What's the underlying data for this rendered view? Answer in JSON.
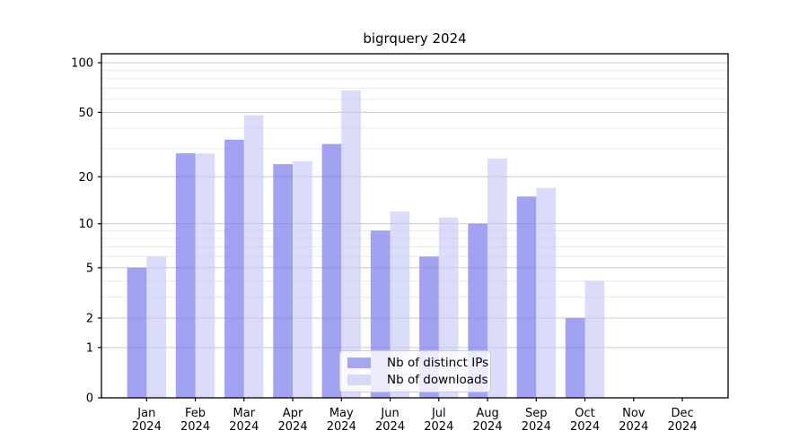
{
  "chart_data": {
    "type": "bar",
    "title": "bigrquery 2024",
    "categories": [
      "Jan",
      "Feb",
      "Mar",
      "Apr",
      "May",
      "Jun",
      "Jul",
      "Aug",
      "Sep",
      "Oct",
      "Nov",
      "Dec"
    ],
    "category_year": "2024",
    "series": [
      {
        "name": "Nb of distinct IPs",
        "values": [
          5,
          28,
          34,
          24,
          32,
          9,
          6,
          10,
          15,
          2,
          0,
          0
        ]
      },
      {
        "name": "Nb of downloads",
        "values": [
          6,
          28,
          48,
          25,
          68,
          12,
          11,
          26,
          17,
          4,
          0,
          0
        ]
      }
    ],
    "xlabel": "",
    "ylabel": "",
    "yscale": "log1p",
    "ylim": [
      0,
      113
    ],
    "yticks": [
      0,
      1,
      2,
      5,
      10,
      20,
      50,
      100
    ],
    "yticks_minor": [
      3,
      4,
      6,
      7,
      8,
      9,
      30,
      40,
      60,
      70,
      80,
      90
    ],
    "grid": "horizontal",
    "legend_position": "lower-center-inside",
    "colors": {
      "distinct_ips_fill": "rgba(131,131,238,0.75)",
      "downloads_fill": "rgba(200,200,248,0.65)",
      "distinct_ips_legend": "#a6a6f3",
      "downloads_legend": "#d8d8f8",
      "grid_major": "#c9c9c9",
      "grid_minor": "#ececec",
      "axis_frame": "#000000",
      "tick_label": "#000000"
    }
  }
}
